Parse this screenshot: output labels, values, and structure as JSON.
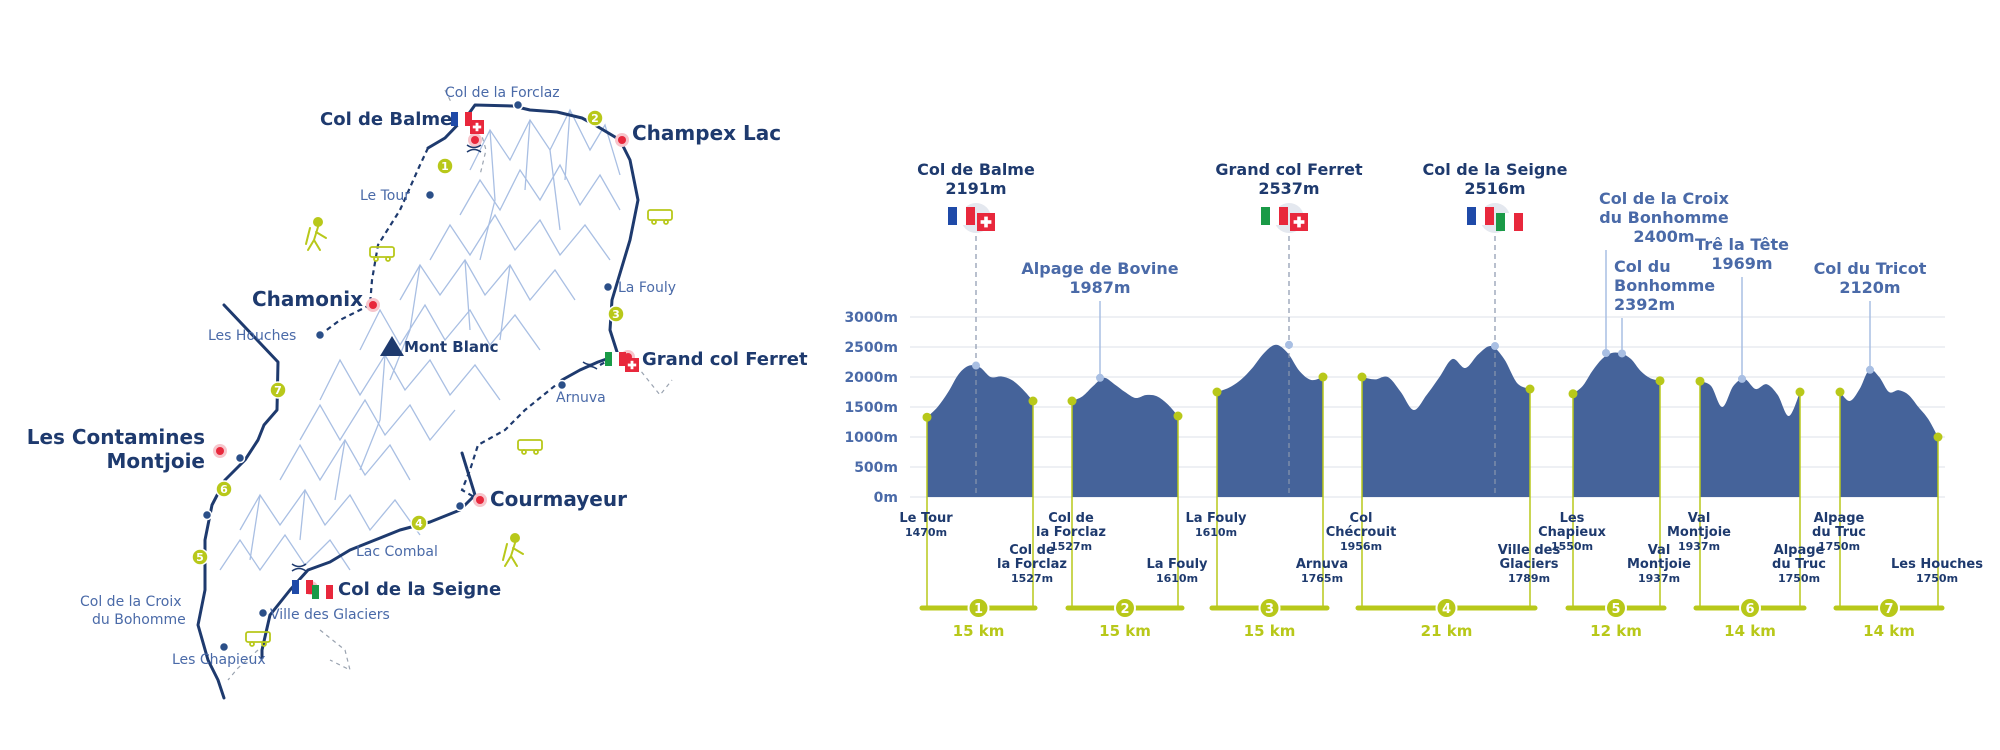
{
  "colors": {
    "navy": "#1e3a6e",
    "label_blue": "#4a6aa8",
    "lime": "#b8c81a",
    "red": "#e8283c",
    "profile_fill": "#45639a",
    "mountains": "#a9bfe3"
  },
  "map": {
    "major_places": {
      "col_de_balme": "Col de Balme",
      "champex_lac": "Champex Lac",
      "chamonix": "Chamonix",
      "grand_col_ferret": "Grand col Ferret",
      "contamines_l1": "Les Contamines",
      "contamines_l2": "Montjoie",
      "courmayeur": "Courmayeur",
      "col_de_la_seigne": "Col de la Seigne"
    },
    "minor_places": {
      "col_forclaz": "Col de la Forclaz",
      "le_tour": "Le Tour",
      "les_houches": "Les Houches",
      "la_fouly": "La Fouly",
      "arnuva": "Arnuva",
      "lac_combal": "Lac Combal",
      "croix_l1": "Col de la Croix",
      "croix_l2": "du Bohomme",
      "ville_glaciers": "Ville des Glaciers",
      "les_chapieux": "Les Chapieux"
    },
    "peak_label": "Mont Blanc",
    "stage_numbers": [
      "1",
      "2",
      "3",
      "4",
      "5",
      "6",
      "7"
    ]
  },
  "chart_data": {
    "type": "area",
    "ylabel": "",
    "y_ticks": [
      "0m",
      "500m",
      "1000m",
      "1500m",
      "2000m",
      "2500m",
      "3000m"
    ],
    "ylim": [
      0,
      3000
    ],
    "grid": true,
    "stages": [
      {
        "number": "1",
        "distance": "15 km",
        "start": {
          "name_lines": [
            "Le Tour"
          ],
          "alt": "1470m"
        },
        "end": {
          "name_lines": [
            "Col de",
            "la Forclaz"
          ],
          "alt": "1527m"
        },
        "profile": [
          1330,
          1500,
          1750,
          2050,
          2191,
          2160,
          2000,
          2010,
          1950,
          1800,
          1600
        ]
      },
      {
        "number": "2",
        "distance": "15 km",
        "start": {
          "name_lines": [
            "Col de",
            "la Forclaz"
          ],
          "alt": "1527m"
        },
        "end": {
          "name_lines": [
            "La Fouly"
          ],
          "alt": "1610m"
        },
        "profile": [
          1600,
          1680,
          1850,
          1987,
          1880,
          1750,
          1650,
          1700,
          1680,
          1550,
          1350
        ]
      },
      {
        "number": "3",
        "distance": "15 km",
        "start": {
          "name_lines": [
            "La Fouly"
          ],
          "alt": "1610m"
        },
        "end": {
          "name_lines": [
            "Arnuva"
          ],
          "alt": "1765m"
        },
        "profile": [
          1750,
          1820,
          1950,
          2150,
          2400,
          2537,
          2400,
          2100,
          1950,
          2000
        ]
      },
      {
        "number": "4",
        "distance": "21 km",
        "start": {
          "name_lines": [
            "Col",
            "Chécrouit"
          ],
          "alt": "1956m"
        },
        "end": {
          "name_lines": [
            "Ville des",
            "Glaciers"
          ],
          "alt": "1789m"
        },
        "profile": [
          2000,
          1960,
          2000,
          1750,
          1450,
          1700,
          2000,
          2300,
          2150,
          2380,
          2516,
          2300,
          1900,
          1800
        ]
      },
      {
        "number": "5",
        "distance": "12 km",
        "start": {
          "name_lines": [
            "Les",
            "Chapieux"
          ],
          "alt": "1550m"
        },
        "end": {
          "name_lines": [
            "Val",
            "Montjoie"
          ],
          "alt": "1937m"
        },
        "profile": [
          1720,
          1850,
          2100,
          2300,
          2400,
          2392,
          2300,
          2100,
          1980,
          1937
        ]
      },
      {
        "number": "6",
        "distance": "14 km",
        "start": {
          "name_lines": [
            "Val",
            "Montjoie"
          ],
          "alt": "1937m"
        },
        "end": {
          "name_lines": [
            "Alpage",
            "du Truc"
          ],
          "alt": "1750m"
        },
        "profile": [
          1930,
          1850,
          1500,
          1850,
          1969,
          1800,
          1880,
          1700,
          1350,
          1750
        ]
      },
      {
        "number": "7",
        "distance": "14 km",
        "start": {
          "name_lines": [
            "Alpage",
            "du Truc"
          ],
          "alt": "1750m"
        },
        "end": {
          "name_lines": [
            "Les Houches"
          ],
          "alt": "1750m"
        },
        "profile": [
          1750,
          1600,
          1800,
          2120,
          2000,
          1750,
          1780,
          1700,
          1500,
          1300,
          1000
        ]
      }
    ],
    "summits": [
      {
        "name_lines": [
          "Col de Balme",
          "2191m"
        ],
        "flags": [
          "fr",
          "ch"
        ]
      },
      {
        "name_lines": [
          "Alpage de Bovine",
          "1987m"
        ]
      },
      {
        "name_lines": [
          "Grand col Ferret",
          "2537m"
        ],
        "flags": [
          "it",
          "ch"
        ]
      },
      {
        "name_lines": [
          "Col de la Seigne",
          "2516m"
        ],
        "flags": [
          "fr",
          "it"
        ]
      },
      {
        "name_lines": [
          "Col de la Croix",
          "du Bonhomme",
          "2400m"
        ]
      },
      {
        "name_lines": [
          "Col du",
          "Bonhomme",
          "2392m"
        ]
      },
      {
        "name_lines": [
          "Trê la Tête",
          "1969m"
        ]
      },
      {
        "name_lines": [
          "Col du Tricot",
          "2120m"
        ]
      }
    ]
  }
}
